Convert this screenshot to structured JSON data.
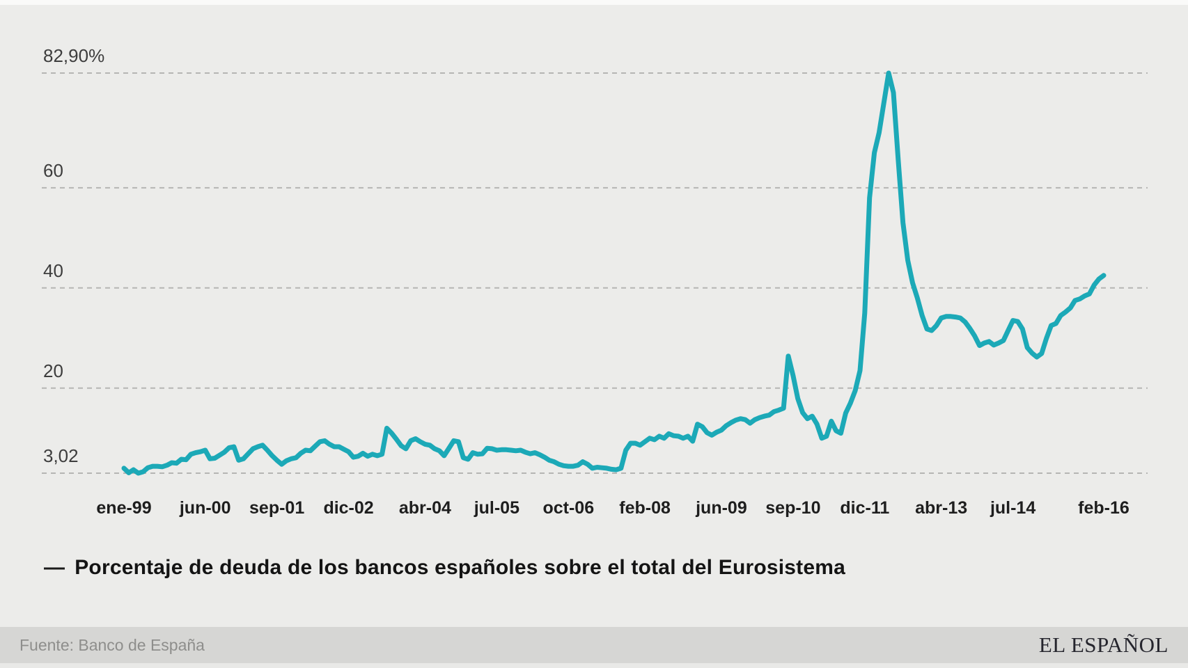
{
  "page": {
    "background": "#ECECEA"
  },
  "chart_data": {
    "type": "line",
    "title": "",
    "series_name": "Porcentaje de deuda de los bancos españoles sobre el total del Eurosistema",
    "unit": "%",
    "start_month": "ene-99",
    "end_month": "feb-16",
    "line_color": "#1CA9B7",
    "grid_color": "#B5B5B3",
    "axis_label_color": "#3D3D3D",
    "x_label_color": "#1E1E1E",
    "ylim": [
      3.02,
      82.9
    ],
    "grid": "dashed-horizontal",
    "legend_position": "bottom-left",
    "y_ticks": [
      {
        "label": "82,90%",
        "value": 82.9
      },
      {
        "label": "60",
        "value": 60
      },
      {
        "label": "40",
        "value": 40
      },
      {
        "label": "20",
        "value": 20
      },
      {
        "label": "3,02",
        "value": 3.02
      }
    ],
    "x_ticks": [
      {
        "label": "ene-99",
        "month_index": 0
      },
      {
        "label": "jun-00",
        "month_index": 17
      },
      {
        "label": "sep-01",
        "month_index": 32
      },
      {
        "label": "dic-02",
        "month_index": 47
      },
      {
        "label": "abr-04",
        "month_index": 63
      },
      {
        "label": "jul-05",
        "month_index": 78
      },
      {
        "label": "oct-06",
        "month_index": 93
      },
      {
        "label": "feb-08",
        "month_index": 109
      },
      {
        "label": "jun-09",
        "month_index": 125
      },
      {
        "label": "sep-10",
        "month_index": 140
      },
      {
        "label": "dic-11",
        "month_index": 155
      },
      {
        "label": "abr-13",
        "month_index": 171
      },
      {
        "label": "jul-14",
        "month_index": 186
      },
      {
        "label": "feb-16",
        "month_index": 205
      }
    ],
    "values": [
      4.0,
      3.1,
      3.7,
      3.02,
      3.3,
      4.1,
      4.4,
      4.4,
      4.3,
      4.6,
      5.1,
      5.0,
      5.8,
      5.7,
      6.8,
      7.1,
      7.3,
      7.6,
      5.9,
      6.0,
      6.6,
      7.2,
      8.1,
      8.3,
      5.6,
      5.9,
      6.9,
      7.9,
      8.3,
      8.6,
      7.6,
      6.5,
      5.6,
      4.8,
      5.5,
      5.9,
      6.1,
      7.0,
      7.6,
      7.5,
      8.4,
      9.3,
      9.5,
      8.8,
      8.3,
      8.3,
      7.8,
      7.3,
      6.2,
      6.4,
      7.0,
      6.4,
      6.8,
      6.5,
      6.8,
      12.0,
      11.0,
      9.8,
      8.5,
      7.9,
      9.5,
      9.9,
      9.3,
      8.8,
      8.6,
      7.9,
      7.5,
      6.5,
      8.0,
      9.5,
      9.3,
      6.1,
      5.8,
      7.1,
      6.8,
      6.9,
      8.0,
      7.9,
      7.6,
      7.7,
      7.7,
      7.6,
      7.5,
      7.6,
      7.2,
      6.9,
      7.1,
      6.7,
      6.2,
      5.6,
      5.3,
      4.8,
      4.5,
      4.4,
      4.4,
      4.6,
      5.3,
      4.8,
      4.0,
      4.2,
      4.1,
      4.0,
      3.8,
      3.7,
      4.0,
      7.6,
      9.0,
      9.0,
      8.6,
      9.3,
      10.0,
      9.7,
      10.4,
      10.0,
      10.9,
      10.5,
      10.4,
      10.0,
      10.4,
      9.4,
      12.8,
      12.3,
      11.1,
      10.6,
      11.2,
      11.6,
      12.5,
      13.1,
      13.6,
      13.9,
      13.7,
      13.0,
      13.7,
      14.1,
      14.4,
      14.6,
      15.3,
      15.6,
      16.0,
      26.4,
      22.5,
      17.9,
      15.1,
      13.9,
      14.4,
      12.8,
      10.0,
      10.4,
      13.4,
      11.5,
      11.0,
      15.0,
      17.0,
      19.5,
      23.5,
      35.0,
      58.0,
      67.0,
      71.0,
      77.0,
      82.9,
      79.0,
      65.5,
      53.0,
      45.5,
      41.0,
      38.0,
      34.5,
      31.8,
      31.5,
      32.5,
      34.0,
      34.3,
      34.3,
      34.2,
      34.0,
      33.2,
      31.9,
      30.4,
      28.5,
      29.0,
      29.3,
      28.6,
      29.0,
      29.5,
      31.5,
      33.5,
      33.3,
      31.8,
      28.1,
      27.0,
      26.2,
      26.9,
      29.9,
      32.5,
      32.9,
      34.5,
      35.2,
      36.0,
      37.5,
      37.8,
      38.4,
      38.8,
      40.6,
      41.8,
      42.5
    ]
  },
  "legend": {
    "dash": "—",
    "label": "Porcentaje de deuda de los bancos españoles sobre el total del Eurosistema"
  },
  "footer": {
    "source": "Fuente: Banco de España",
    "brand": "EL ESPAÑOL"
  }
}
